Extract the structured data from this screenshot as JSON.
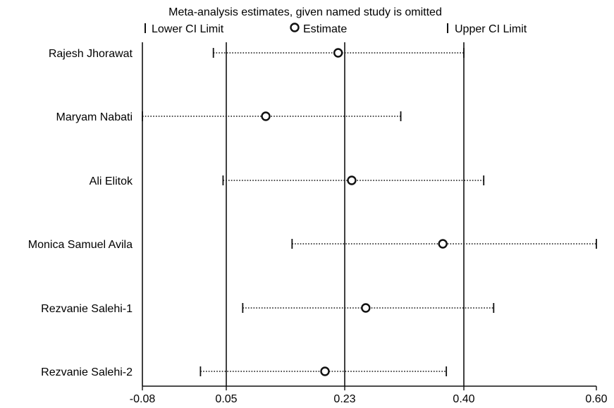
{
  "chart_data": {
    "type": "scatter",
    "title": "Meta-analysis estimates, given named study is omitted",
    "legend": {
      "position": "top",
      "items": [
        {
          "marker": "bar",
          "label": "Lower CI Limit"
        },
        {
          "marker": "circle",
          "label": "Estimate"
        },
        {
          "marker": "bar",
          "label": "Upper CI Limit"
        }
      ]
    },
    "x_axis": {
      "ticks": [
        -0.08,
        0.05,
        0.23,
        0.4,
        0.6
      ],
      "tick_labels": [
        "-0.08",
        "0.05",
        "0.23",
        "0.40",
        "0.60"
      ],
      "range": [
        -0.08,
        0.6
      ]
    },
    "reference_lines": [
      -0.08,
      0.05,
      0.23,
      0.4
    ],
    "series": [
      {
        "study": "Rajesh Jhorawat",
        "lower": 0.03,
        "estimate": 0.22,
        "upper": 0.4
      },
      {
        "study": "Maryam Nabati",
        "lower": -0.08,
        "estimate": 0.11,
        "upper": 0.31
      },
      {
        "study": "Ali Elitok",
        "lower": 0.045,
        "estimate": 0.24,
        "upper": 0.43
      },
      {
        "study": "Monica Samuel Avila",
        "lower": 0.15,
        "estimate": 0.37,
        "upper": 0.6
      },
      {
        "study": "Rezvanie Salehi-1",
        "lower": 0.075,
        "estimate": 0.26,
        "upper": 0.445
      },
      {
        "study": "Rezvanie Salehi-2",
        "lower": 0.01,
        "estimate": 0.2,
        "upper": 0.375
      }
    ],
    "grid": false
  }
}
